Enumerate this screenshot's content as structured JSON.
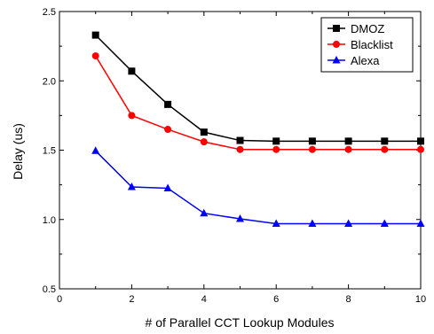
{
  "chart_data": {
    "type": "line",
    "xlabel": "# of Parallel CCT Lookup Modules",
    "ylabel": "Delay (us)",
    "xlim": [
      0,
      10
    ],
    "ylim": [
      0.5,
      2.5
    ],
    "xticks": [
      "0",
      "2",
      "4",
      "6",
      "8",
      "10"
    ],
    "yticks": [
      "0.5",
      "1.0",
      "1.5",
      "2.0",
      "2.5"
    ],
    "grid": false,
    "legend_position": "top-right",
    "x": [
      1,
      2,
      3,
      4,
      5,
      6,
      7,
      8,
      9,
      10
    ],
    "series": [
      {
        "name": "DMOZ",
        "color": "#000000",
        "marker": "square",
        "values": [
          2.33,
          2.07,
          1.83,
          1.63,
          1.57,
          1.565,
          1.565,
          1.565,
          1.565,
          1.565
        ]
      },
      {
        "name": "Blacklist",
        "color": "#ff0000",
        "marker": "circle",
        "values": [
          2.18,
          1.75,
          1.65,
          1.56,
          1.505,
          1.505,
          1.505,
          1.505,
          1.505,
          1.505
        ]
      },
      {
        "name": "Alexa",
        "color": "#0000ff",
        "marker": "triangle",
        "values": [
          1.495,
          1.235,
          1.225,
          1.045,
          1.005,
          0.97,
          0.97,
          0.97,
          0.97,
          0.97
        ]
      }
    ]
  }
}
